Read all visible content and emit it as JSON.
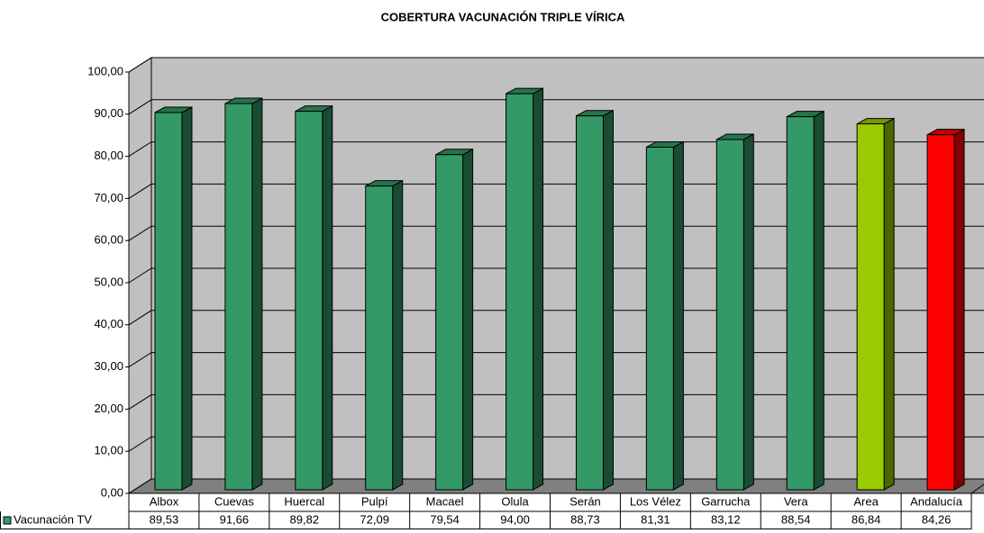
{
  "chart_data": {
    "type": "bar3d",
    "title": "COBERTURA VACUNACIÓN TRIPLE VÍRICA",
    "categories": [
      "Albox",
      "Cuevas",
      "Huercal",
      "Pulpí",
      "Macael",
      "Olula",
      "Serán",
      "Los Vélez",
      "Garrucha",
      "Vera",
      "Area",
      "Andalucía"
    ],
    "series": [
      {
        "name": "Vacunación TV",
        "colors": [
          "#339966",
          "#339966",
          "#339966",
          "#339966",
          "#339966",
          "#339966",
          "#339966",
          "#339966",
          "#339966",
          "#339966",
          "#99cc00",
          "#ff0000"
        ],
        "values": [
          89.53,
          91.66,
          89.82,
          72.09,
          79.54,
          94.0,
          88.73,
          81.31,
          83.12,
          88.54,
          86.84,
          84.26
        ],
        "value_labels": [
          "89,53",
          "91,66",
          "89,82",
          "72,09",
          "79,54",
          "94,00",
          "88,73",
          "81,31",
          "83,12",
          "88,54",
          "86,84",
          "84,26"
        ]
      }
    ],
    "ylim": [
      0,
      100
    ],
    "yticks": [
      {
        "value": 0,
        "label": "0,00"
      },
      {
        "value": 10,
        "label": "10,00"
      },
      {
        "value": 20,
        "label": "20,00"
      },
      {
        "value": 30,
        "label": "30,00"
      },
      {
        "value": 40,
        "label": "40,00"
      },
      {
        "value": 50,
        "label": "50,00"
      },
      {
        "value": 60,
        "label": "60,00"
      },
      {
        "value": 70,
        "label": "70,00"
      },
      {
        "value": 80,
        "label": "80,00"
      },
      {
        "value": 90,
        "label": "90,00"
      },
      {
        "value": 100,
        "label": "100,00"
      }
    ],
    "grid": true
  }
}
